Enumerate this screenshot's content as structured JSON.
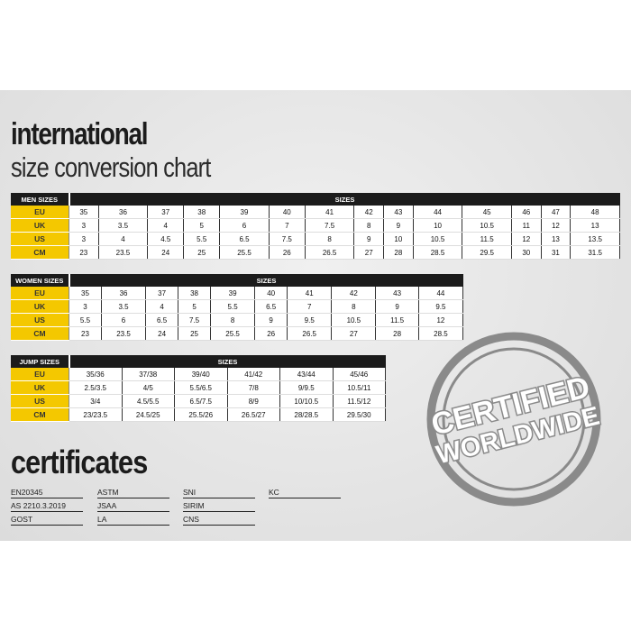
{
  "title": "international",
  "subtitle": "size conversion chart",
  "men": {
    "label": "MEN SIZES",
    "header": "SIZES",
    "rows": [
      {
        "label": "EU",
        "values": [
          "35",
          "36",
          "37",
          "38",
          "39",
          "40",
          "41",
          "42",
          "43",
          "44",
          "45",
          "46",
          "47",
          "48"
        ]
      },
      {
        "label": "UK",
        "values": [
          "3",
          "3.5",
          "4",
          "5",
          "6",
          "7",
          "7.5",
          "8",
          "9",
          "10",
          "10.5",
          "11",
          "12",
          "13"
        ]
      },
      {
        "label": "US",
        "values": [
          "3",
          "4",
          "4.5",
          "5.5",
          "6.5",
          "7.5",
          "8",
          "9",
          "10",
          "10.5",
          "11.5",
          "12",
          "13",
          "13.5"
        ]
      },
      {
        "label": "CM",
        "values": [
          "23",
          "23.5",
          "24",
          "25",
          "25.5",
          "26",
          "26.5",
          "27",
          "28",
          "28.5",
          "29.5",
          "30",
          "31",
          "31.5"
        ]
      }
    ]
  },
  "women": {
    "label": "WOMEN SIZES",
    "header": "SIZES",
    "rows": [
      {
        "label": "EU",
        "values": [
          "35",
          "36",
          "37",
          "38",
          "39",
          "40",
          "41",
          "42",
          "43",
          "44"
        ]
      },
      {
        "label": "UK",
        "values": [
          "3",
          "3.5",
          "4",
          "5",
          "5.5",
          "6.5",
          "7",
          "8",
          "9",
          "9.5"
        ]
      },
      {
        "label": "US",
        "values": [
          "5.5",
          "6",
          "6.5",
          "7.5",
          "8",
          "9",
          "9.5",
          "10.5",
          "11.5",
          "12"
        ]
      },
      {
        "label": "CM",
        "values": [
          "23",
          "23.5",
          "24",
          "25",
          "25.5",
          "26",
          "26.5",
          "27",
          "28",
          "28.5"
        ]
      }
    ]
  },
  "jump": {
    "label": "JUMP SIZES",
    "header": "SIZES",
    "rows": [
      {
        "label": "EU",
        "values": [
          "35/36",
          "37/38",
          "39/40",
          "41/42",
          "43/44",
          "45/46"
        ]
      },
      {
        "label": "UK",
        "values": [
          "2.5/3.5",
          "4/5",
          "5.5/6.5",
          "7/8",
          "9/9.5",
          "10.5/11"
        ]
      },
      {
        "label": "US",
        "values": [
          "3/4",
          "4.5/5.5",
          "6.5/7.5",
          "8/9",
          "10/10.5",
          "11.5/12"
        ]
      },
      {
        "label": "CM",
        "values": [
          "23/23.5",
          "24.5/25",
          "25.5/26",
          "26.5/27",
          "28/28.5",
          "29.5/30"
        ]
      }
    ]
  },
  "certificates_title": "certificates",
  "certificates": [
    [
      "EN20345",
      "AS 2210.3.2019",
      "GOST"
    ],
    [
      "ASTM",
      "JSAA",
      "LA"
    ],
    [
      "SNI",
      "SIRIM",
      "CNS"
    ],
    [
      "KC"
    ]
  ],
  "stamp": {
    "line1": "CERTIFIED",
    "line2": "WORLDWIDE"
  },
  "colors": {
    "accent": "#f4c800",
    "header": "#1b1b1b",
    "stamp": "#8a8a8a"
  }
}
